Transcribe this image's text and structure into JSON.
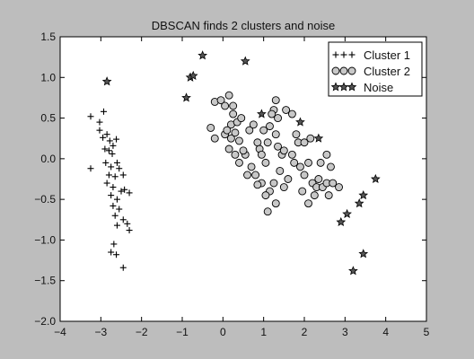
{
  "chart_data": {
    "type": "scatter",
    "title": "DBSCAN finds 2 clusters and noise",
    "xlabel": "",
    "ylabel": "",
    "xlim": [
      -4,
      5
    ],
    "ylim": [
      -2.0,
      1.5
    ],
    "xticks": [
      "−4",
      "−3",
      "−2",
      "−1",
      "0",
      "1",
      "2",
      "3",
      "4",
      "5"
    ],
    "xtick_values": [
      -4,
      -3,
      -2,
      -1,
      0,
      1,
      2,
      3,
      4,
      5
    ],
    "yticks": [
      "1.5",
      "1.0",
      "0.5",
      "0.0",
      "−0.5",
      "−1.0",
      "−1.5",
      "−2.0"
    ],
    "ytick_values": [
      1.5,
      1.0,
      0.5,
      0.0,
      -0.5,
      -1.0,
      -1.5,
      -2.0
    ],
    "grid": false,
    "legend_position": "top-right",
    "background_color": "#bdbdbd",
    "plot_area_color": "#ffffff",
    "series": [
      {
        "name": "Cluster 1",
        "marker": "plus",
        "color": "#000000",
        "points": [
          [
            -3.25,
            0.52
          ],
          [
            -3.25,
            -0.12
          ],
          [
            -3.03,
            0.45
          ],
          [
            -2.93,
            0.58
          ],
          [
            -3.03,
            0.35
          ],
          [
            -2.95,
            0.26
          ],
          [
            -2.85,
            0.3
          ],
          [
            -2.78,
            0.22
          ],
          [
            -2.7,
            0.16
          ],
          [
            -2.9,
            0.12
          ],
          [
            -2.8,
            0.1
          ],
          [
            -2.62,
            0.24
          ],
          [
            -2.72,
            0.06
          ],
          [
            -2.88,
            -0.05
          ],
          [
            -2.75,
            -0.1
          ],
          [
            -2.6,
            -0.05
          ],
          [
            -2.8,
            -0.2
          ],
          [
            -2.65,
            -0.22
          ],
          [
            -2.55,
            -0.12
          ],
          [
            -2.45,
            -0.2
          ],
          [
            -2.85,
            -0.3
          ],
          [
            -2.7,
            -0.35
          ],
          [
            -2.5,
            -0.4
          ],
          [
            -2.42,
            -0.38
          ],
          [
            -2.3,
            -0.42
          ],
          [
            -2.75,
            -0.45
          ],
          [
            -2.6,
            -0.5
          ],
          [
            -2.7,
            -0.58
          ],
          [
            -2.55,
            -0.62
          ],
          [
            -2.65,
            -0.7
          ],
          [
            -2.45,
            -0.75
          ],
          [
            -2.6,
            -0.82
          ],
          [
            -2.35,
            -0.8
          ],
          [
            -2.3,
            -0.88
          ],
          [
            -2.68,
            -1.05
          ],
          [
            -2.75,
            -1.15
          ],
          [
            -2.62,
            -1.18
          ],
          [
            -2.45,
            -1.34
          ]
        ]
      },
      {
        "name": "Cluster 2",
        "marker": "circle",
        "color": "#c8c8c8",
        "points": [
          [
            -0.3,
            0.38
          ],
          [
            -0.2,
            0.25
          ],
          [
            -0.2,
            0.7
          ],
          [
            -0.05,
            0.72
          ],
          [
            0.05,
            0.65
          ],
          [
            0.05,
            0.3
          ],
          [
            0.15,
            0.78
          ],
          [
            0.25,
            0.65
          ],
          [
            0.25,
            0.55
          ],
          [
            0.2,
            0.42
          ],
          [
            0.1,
            0.35
          ],
          [
            0.2,
            0.25
          ],
          [
            0.3,
            0.32
          ],
          [
            0.35,
            0.45
          ],
          [
            0.45,
            0.5
          ],
          [
            0.4,
            0.22
          ],
          [
            0.15,
            0.12
          ],
          [
            0.3,
            0.05
          ],
          [
            0.4,
            -0.05
          ],
          [
            0.55,
            0.05
          ],
          [
            0.65,
            0.35
          ],
          [
            0.75,
            0.42
          ],
          [
            0.85,
            0.2
          ],
          [
            0.9,
            0.12
          ],
          [
            0.7,
            -0.1
          ],
          [
            0.8,
            -0.2
          ],
          [
            0.95,
            0.05
          ],
          [
            1.05,
            -0.05
          ],
          [
            1.1,
            0.2
          ],
          [
            1.15,
            0.4
          ],
          [
            1.25,
            0.6
          ],
          [
            1.2,
            0.55
          ],
          [
            1.3,
            0.3
          ],
          [
            1.35,
            0.15
          ],
          [
            1.45,
            0.05
          ],
          [
            1.4,
            -0.15
          ],
          [
            1.25,
            -0.3
          ],
          [
            1.15,
            -0.4
          ],
          [
            1.05,
            -0.45
          ],
          [
            0.95,
            -0.3
          ],
          [
            0.85,
            -0.32
          ],
          [
            1.1,
            -0.65
          ],
          [
            1.3,
            -0.55
          ],
          [
            1.5,
            -0.35
          ],
          [
            1.6,
            -0.25
          ],
          [
            1.7,
            0.05
          ],
          [
            1.8,
            0.3
          ],
          [
            1.85,
            0.2
          ],
          [
            1.75,
            -0.05
          ],
          [
            1.9,
            -0.1
          ],
          [
            2.0,
            -0.2
          ],
          [
            2.1,
            -0.05
          ],
          [
            2.2,
            -0.3
          ],
          [
            2.3,
            -0.35
          ],
          [
            2.35,
            -0.25
          ],
          [
            2.45,
            -0.35
          ],
          [
            2.55,
            -0.3
          ],
          [
            2.6,
            -0.45
          ],
          [
            2.7,
            -0.3
          ],
          [
            2.85,
            -0.35
          ],
          [
            2.4,
            -0.05
          ],
          [
            2.55,
            0.05
          ],
          [
            2.65,
            -0.1
          ],
          [
            2.0,
            0.2
          ],
          [
            2.15,
            0.25
          ],
          [
            1.95,
            -0.4
          ],
          [
            2.1,
            -0.55
          ],
          [
            2.25,
            -0.45
          ],
          [
            1.55,
            0.6
          ],
          [
            1.7,
            0.55
          ],
          [
            1.3,
            0.72
          ],
          [
            1.35,
            0.5
          ],
          [
            0.5,
            0.1
          ],
          [
            0.6,
            -0.2
          ],
          [
            1.0,
            0.35
          ],
          [
            1.5,
            0.1
          ]
        ]
      },
      {
        "name": "Noise",
        "marker": "star",
        "color": "#555555",
        "points": [
          [
            -2.85,
            0.95
          ],
          [
            -0.9,
            0.75
          ],
          [
            -0.8,
            1.0
          ],
          [
            -0.73,
            1.02
          ],
          [
            -0.5,
            1.27
          ],
          [
            0.55,
            1.2
          ],
          [
            0.95,
            0.55
          ],
          [
            1.9,
            0.45
          ],
          [
            2.35,
            0.25
          ],
          [
            3.75,
            -0.25
          ],
          [
            3.45,
            -0.45
          ],
          [
            3.35,
            -0.55
          ],
          [
            3.05,
            -0.68
          ],
          [
            2.9,
            -0.78
          ],
          [
            3.45,
            -1.17
          ],
          [
            3.2,
            -1.38
          ]
        ]
      }
    ]
  }
}
